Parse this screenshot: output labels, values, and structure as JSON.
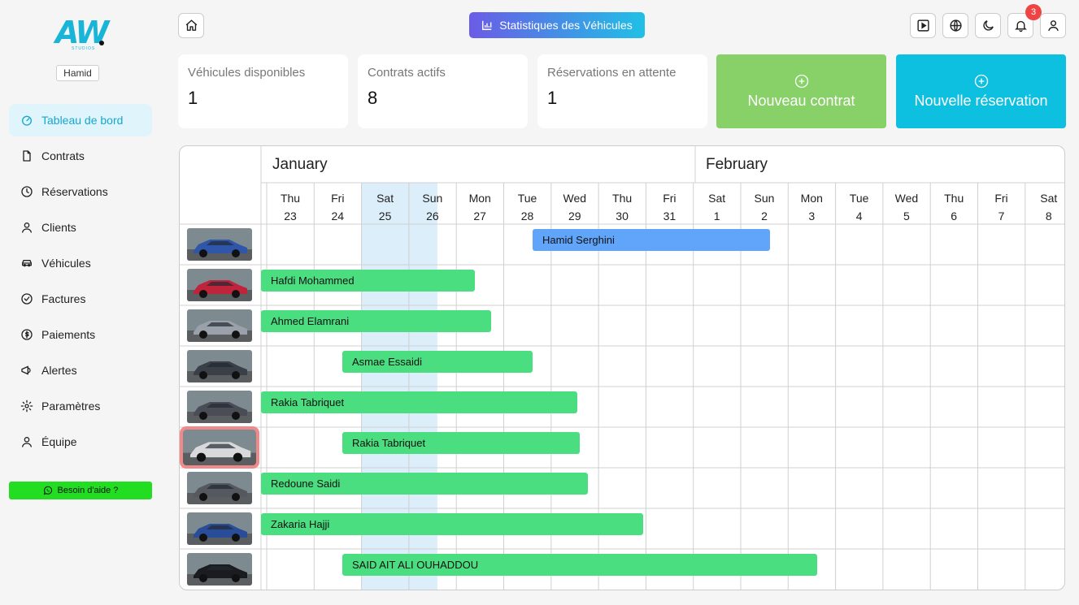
{
  "sidebar": {
    "logo_text": "AW",
    "logo_sub": "STUDIOS",
    "user": "Hamid",
    "items": [
      {
        "label": "Tableau de bord",
        "icon": "dashboard-icon",
        "active": true
      },
      {
        "label": "Contrats",
        "icon": "document-icon"
      },
      {
        "label": "Réservations",
        "icon": "clock-icon"
      },
      {
        "label": "Clients",
        "icon": "user-icon"
      },
      {
        "label": "Véhicules",
        "icon": "car-icon"
      },
      {
        "label": "Factures",
        "icon": "check-circle-icon"
      },
      {
        "label": "Paiements",
        "icon": "dollar-icon"
      },
      {
        "label": "Alertes",
        "icon": "megaphone-icon"
      },
      {
        "label": "Paramètres",
        "icon": "gear-icon"
      },
      {
        "label": "Équipe",
        "icon": "user-icon"
      }
    ],
    "help": "Besoin d'aide ?"
  },
  "header": {
    "stats_label": "Statistiques des Véhicules",
    "notification_count": "3",
    "icons": [
      "home-icon",
      "play-icon",
      "globe-icon",
      "moon-icon",
      "bell-icon",
      "user-icon"
    ]
  },
  "stats": [
    {
      "label": "Véhicules disponibles",
      "value": "1"
    },
    {
      "label": "Contrats actifs",
      "value": "8"
    },
    {
      "label": "Réservations en attente",
      "value": "1"
    }
  ],
  "actions": {
    "new_contract": "Nouveau contrat",
    "new_reservation": "Nouvelle réservation",
    "contract_color": "#88d068",
    "reservation_color": "#0ec0e0"
  },
  "calendar": {
    "months": [
      "January",
      "February"
    ],
    "days": [
      {
        "name": "Thu",
        "num": "23"
      },
      {
        "name": "Fri",
        "num": "24"
      },
      {
        "name": "Sat",
        "num": "25"
      },
      {
        "name": "Sun",
        "num": "26"
      },
      {
        "name": "Mon",
        "num": "27"
      },
      {
        "name": "Tue",
        "num": "28"
      },
      {
        "name": "Wed",
        "num": "29"
      },
      {
        "name": "Thu",
        "num": "30"
      },
      {
        "name": "Fri",
        "num": "31"
      },
      {
        "name": "Sat",
        "num": "1"
      },
      {
        "name": "Sun",
        "num": "2"
      },
      {
        "name": "Mon",
        "num": "3"
      },
      {
        "name": "Tue",
        "num": "4"
      },
      {
        "name": "Wed",
        "num": "5"
      },
      {
        "name": "Thu",
        "num": "6"
      },
      {
        "name": "Fri",
        "num": "7"
      },
      {
        "name": "Sat",
        "num": "8"
      }
    ],
    "today_highlight_color": "#dbeefa",
    "rows": [
      {
        "car_color": "#2f56a8",
        "booking": {
          "name": "Hamid Serghini",
          "color": "blue"
        }
      },
      {
        "car_color": "#c0243a",
        "booking": {
          "name": "Hafdi Mohammed",
          "color": "green"
        }
      },
      {
        "car_color": "#9aa1aa",
        "booking": {
          "name": "Ahmed Elamrani",
          "color": "green"
        }
      },
      {
        "car_color": "#3a3f48",
        "booking": {
          "name": "Asmae Essaidi",
          "color": "green"
        }
      },
      {
        "car_color": "#4a4d55",
        "booking": {
          "name": "Rakia Tabriquet",
          "color": "green"
        }
      },
      {
        "car_color": "#d8d9db",
        "selected": true,
        "booking": {
          "name": "Rakia Tabriquet",
          "color": "green"
        }
      },
      {
        "car_color": "#55585e",
        "booking": {
          "name": "Redoune Saidi",
          "color": "green"
        }
      },
      {
        "car_color": "#2a4d9a",
        "booking": {
          "name": "Zakaria Hajji",
          "color": "green"
        }
      },
      {
        "car_color": "#1b1c20",
        "booking": {
          "name": "SAID AIT ALI OUHADDOU",
          "color": "green"
        }
      }
    ]
  }
}
